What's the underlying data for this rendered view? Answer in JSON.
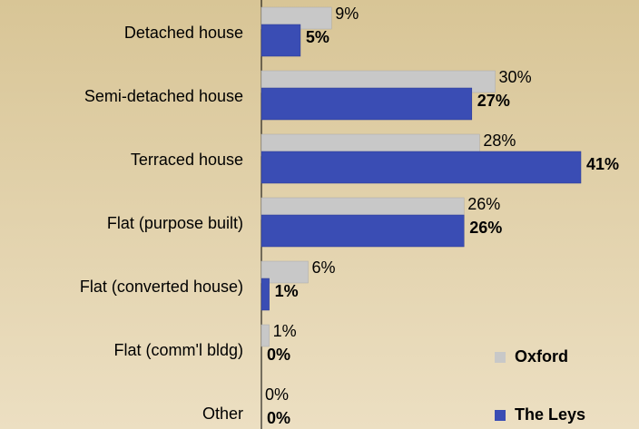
{
  "chart_data": {
    "type": "hbar",
    "categories": [
      "Detached house",
      "Semi-detached house",
      "Terraced house",
      "Flat (purpose built)",
      "Flat (converted house)",
      "Flat (comm'l bldg)",
      "Other"
    ],
    "series": [
      {
        "name": "Oxford",
        "color": "#c8c8c8",
        "values": [
          9,
          30,
          28,
          26,
          6,
          1,
          0
        ],
        "value_labels": [
          "9%",
          "30%",
          "28%",
          "26%",
          "6%",
          "1%",
          "0%"
        ]
      },
      {
        "name": "The Leys",
        "color": "#3a4db4",
        "values": [
          5,
          27,
          41,
          26,
          1,
          0,
          0
        ],
        "value_labels": [
          "5%",
          "27%",
          "41%",
          "26%",
          "1%",
          "0%",
          "0%"
        ]
      }
    ],
    "legend": "lower right"
  }
}
